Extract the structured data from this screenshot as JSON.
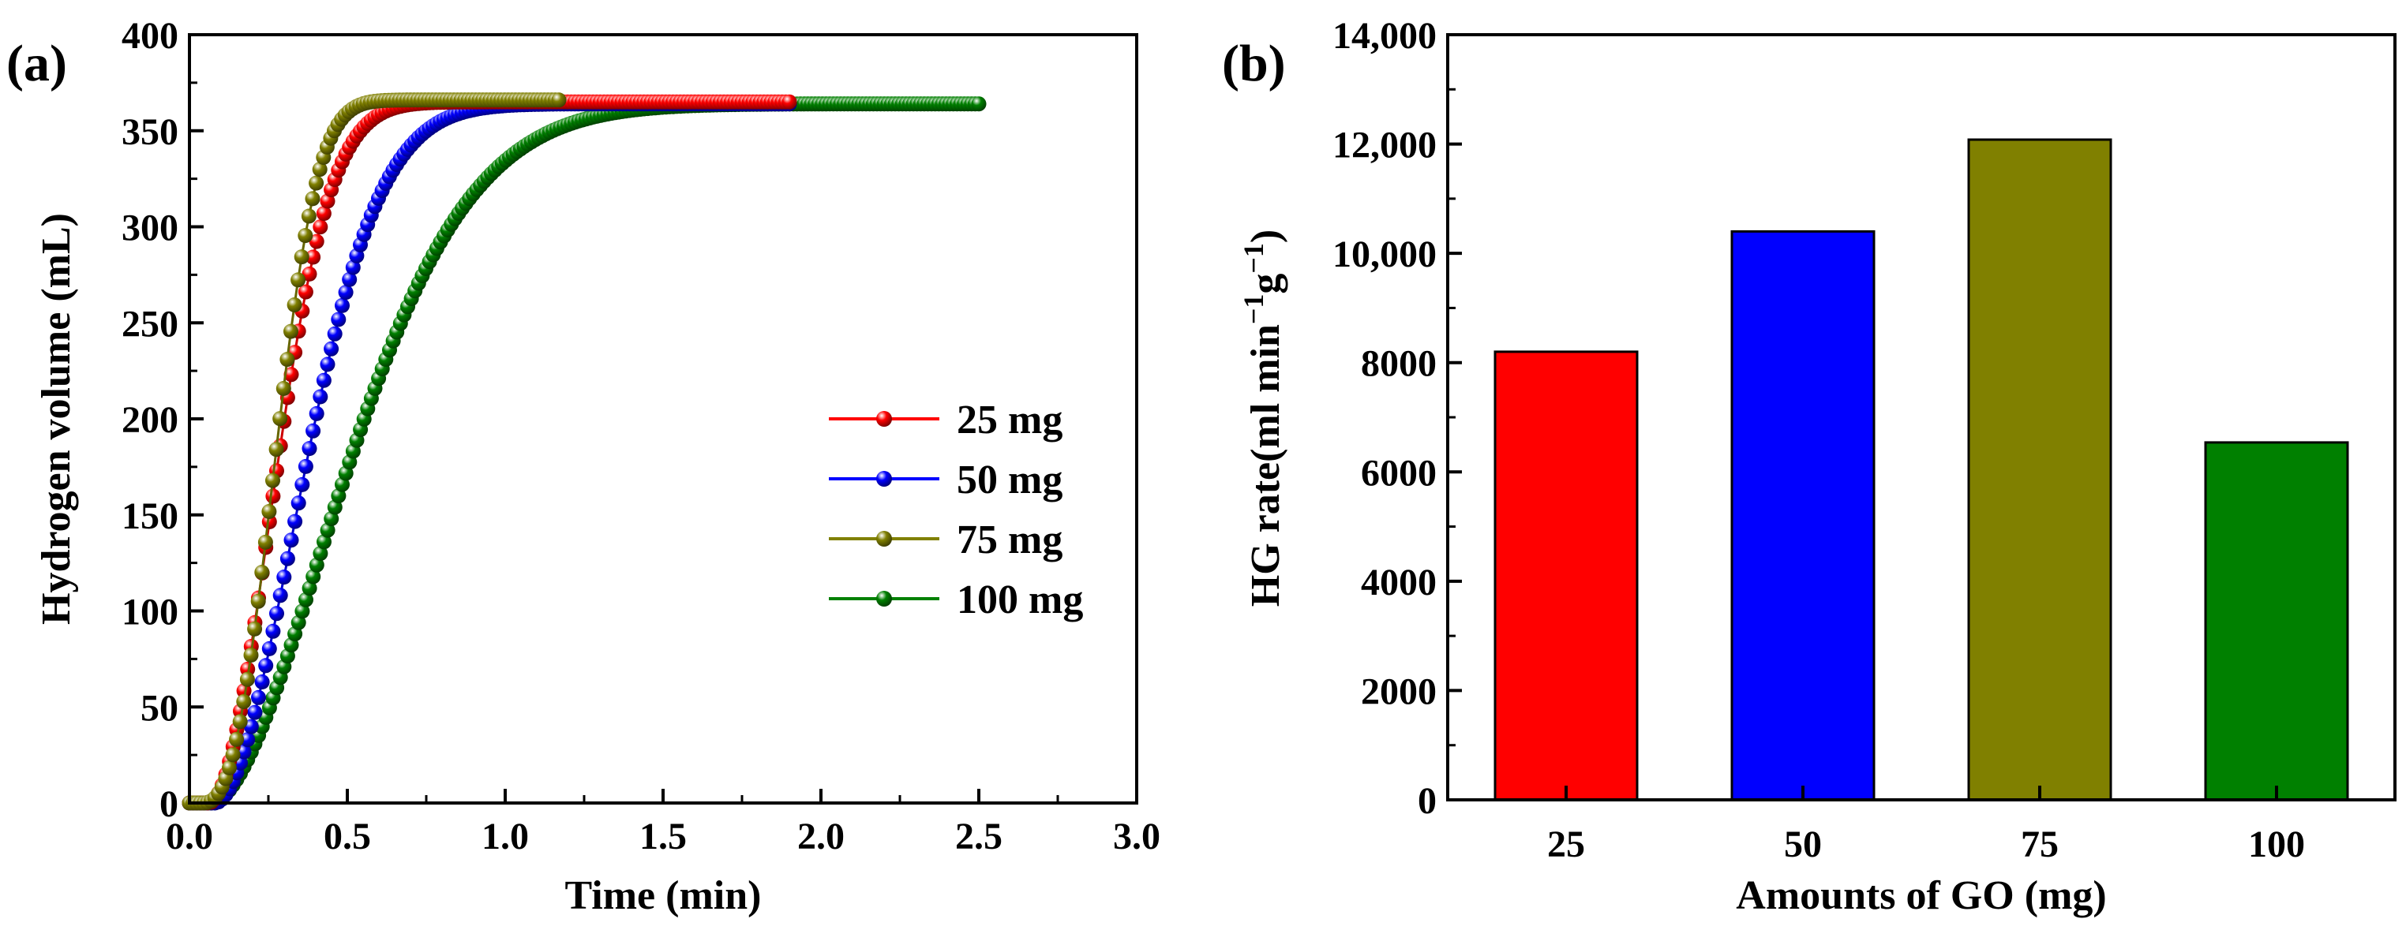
{
  "figure": {
    "panels": [
      "(a)",
      "(b)"
    ]
  },
  "chart_data": [
    {
      "type": "line",
      "panel_label": "(a)",
      "title": "",
      "xlabel": "Time (min)",
      "ylabel": "Hydrogen volume (mL)",
      "xlim": [
        0,
        3.0
      ],
      "ylim": [
        0,
        400
      ],
      "xticks": [
        "0.0",
        "0.5",
        "1.0",
        "1.5",
        "2.0",
        "2.5",
        "3.0"
      ],
      "yticks": [
        "0",
        "50",
        "100",
        "150",
        "200",
        "250",
        "300",
        "350",
        "400"
      ],
      "legend_position": "center-right",
      "series": [
        {
          "name": "25 mg",
          "color": "#ff0000",
          "t_end": 1.9,
          "v_max": 365,
          "onset": 0.06,
          "tau": 0.27,
          "k": 2.0
        },
        {
          "name": "50 mg",
          "color": "#0000ff",
          "t_end": 1.9,
          "v_max": 364,
          "onset": 0.08,
          "tau": 0.36,
          "k": 1.9
        },
        {
          "name": "75 mg",
          "color": "#808000",
          "t_end": 1.17,
          "v_max": 366,
          "onset": 0.04,
          "tau": 0.27,
          "k": 2.6
        },
        {
          "name": "100 mg",
          "color": "#008000",
          "t_end": 2.5,
          "v_max": 364,
          "onset": 0.07,
          "tau": 0.55,
          "k": 1.75
        }
      ]
    },
    {
      "type": "bar",
      "panel_label": "(b)",
      "title": "",
      "xlabel": "Amounts of GO (mg)",
      "ylabel_main": "HG rate(ml min",
      "ylabel_sup1": "−1",
      "ylabel_g": "g",
      "ylabel_sup2": "−1",
      "ylabel_close": ")",
      "ylim": [
        0,
        14000
      ],
      "yticks": [
        "0",
        "2000",
        "4000",
        "6000",
        "8000",
        "10,000",
        "12,000",
        "14,000"
      ],
      "categories": [
        "25",
        "50",
        "75",
        "100"
      ],
      "values": [
        8200,
        10400,
        12080,
        6540
      ],
      "colors": [
        "#ff0000",
        "#0000ff",
        "#808000",
        "#008000"
      ]
    }
  ]
}
